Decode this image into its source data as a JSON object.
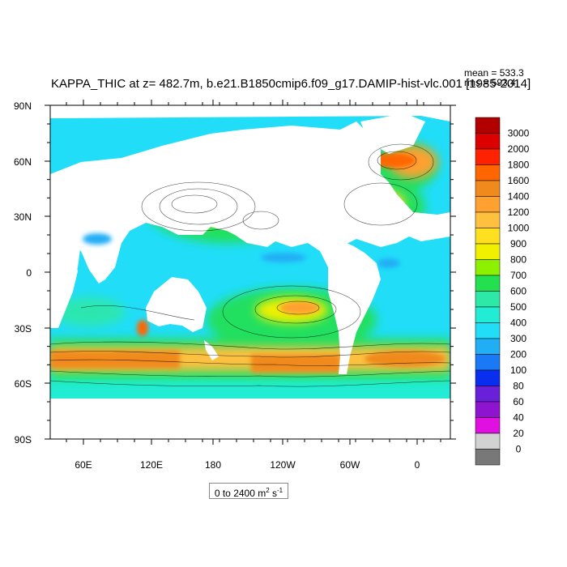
{
  "title": "KAPPA_THIC at z= 482.7m, b.e21.B1850cmip6.f09_g17.DAMIP-hist-vlc.001 [1985-2014]",
  "stats": {
    "mean": "mean = 533.3",
    "rms": "rms = 593.4"
  },
  "range_label": {
    "text": "0 to 2400 m",
    "sup1": "2",
    "mid": " s",
    "sup2": "-1"
  },
  "map": {
    "lat_labels": [
      "90N",
      "60N",
      "30N",
      "0",
      "30S",
      "60S",
      "90S"
    ],
    "lon_labels": [
      "60E",
      "120E",
      "180",
      "120W",
      "60W",
      "0"
    ],
    "land_color": "#ffffff",
    "base_ocean_color": "#21ddf8"
  },
  "colorbar": {
    "labels": [
      "3000",
      "2000",
      "1800",
      "1600",
      "1400",
      "1200",
      "1000",
      "900",
      "800",
      "700",
      "600",
      "500",
      "400",
      "300",
      "200",
      "100",
      "80",
      "60",
      "40",
      "20",
      "0"
    ],
    "colors": [
      "#b00000",
      "#dc0000",
      "#ff2200",
      "#ff6600",
      "#f08a1c",
      "#ffa030",
      "#ffc040",
      "#ffe020",
      "#f0f000",
      "#8cf000",
      "#22e050",
      "#2ee8a8",
      "#22ecd4",
      "#21ddf8",
      "#22aef5",
      "#1a7af5",
      "#0a2ef0",
      "#6a20d8",
      "#8e14d0",
      "#e010e0",
      "#d2d2d2",
      "#787878"
    ]
  }
}
